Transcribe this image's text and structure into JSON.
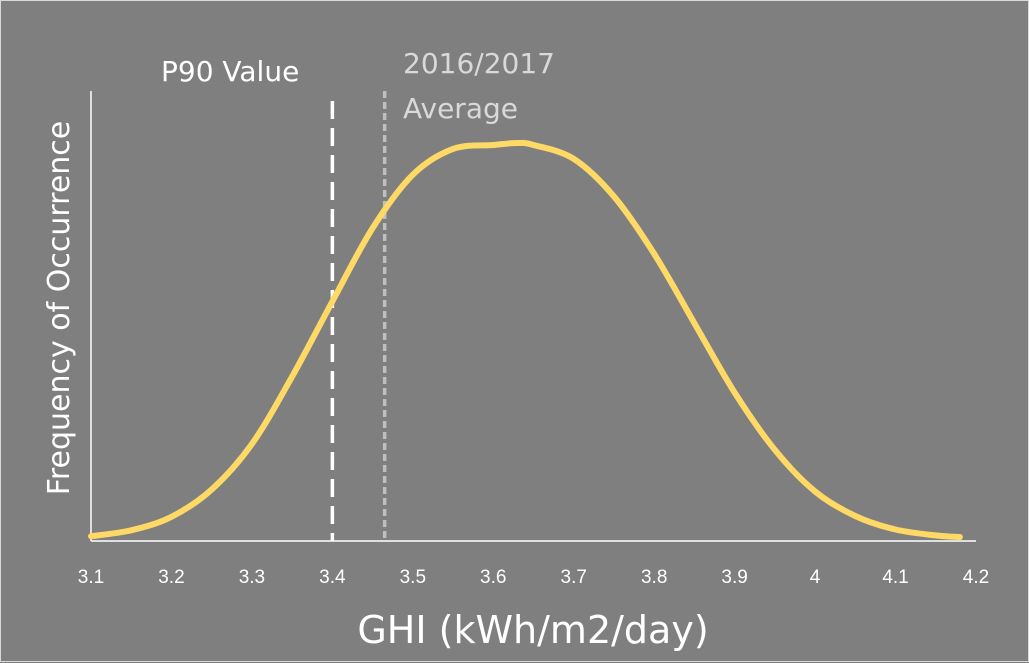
{
  "chart_data": {
    "type": "line",
    "title": "",
    "xlabel": "GHI (kWh/m2/day)",
    "ylabel": "Frequency of Occurrence",
    "xlim": [
      3.1,
      4.2
    ],
    "x_ticks": [
      "3.1",
      "3.2",
      "3.3",
      "3.4",
      "3.5",
      "3.6",
      "3.7",
      "3.8",
      "3.9",
      "4",
      "4.1",
      "4.2"
    ],
    "y_ticks_shown": false,
    "grid": false,
    "series": [
      {
        "name": "",
        "color": "#ffd966",
        "curve": "normal-distribution",
        "x": [
          3.1,
          3.15,
          3.2,
          3.25,
          3.3,
          3.35,
          3.4,
          3.45,
          3.5,
          3.55,
          3.6,
          3.63,
          3.65,
          3.7,
          3.75,
          3.8,
          3.85,
          3.9,
          3.95,
          4.0,
          4.05,
          4.1,
          4.15,
          4.18
        ],
        "y": [
          0.007,
          0.022,
          0.056,
          0.125,
          0.24,
          0.41,
          0.6,
          0.785,
          0.92,
          0.985,
          0.995,
          1.0,
          0.995,
          0.96,
          0.865,
          0.72,
          0.545,
          0.37,
          0.225,
          0.12,
          0.058,
          0.024,
          0.009,
          0.005
        ]
      }
    ],
    "reference_lines": [
      {
        "label": "P90 Value",
        "x": 3.4,
        "color": "#ffffff",
        "style": "dashed"
      },
      {
        "label_line1": "2016/2017",
        "label_line2": "Average",
        "x": 3.465,
        "color": "#bfbfbf",
        "style": "dashed"
      }
    ]
  }
}
